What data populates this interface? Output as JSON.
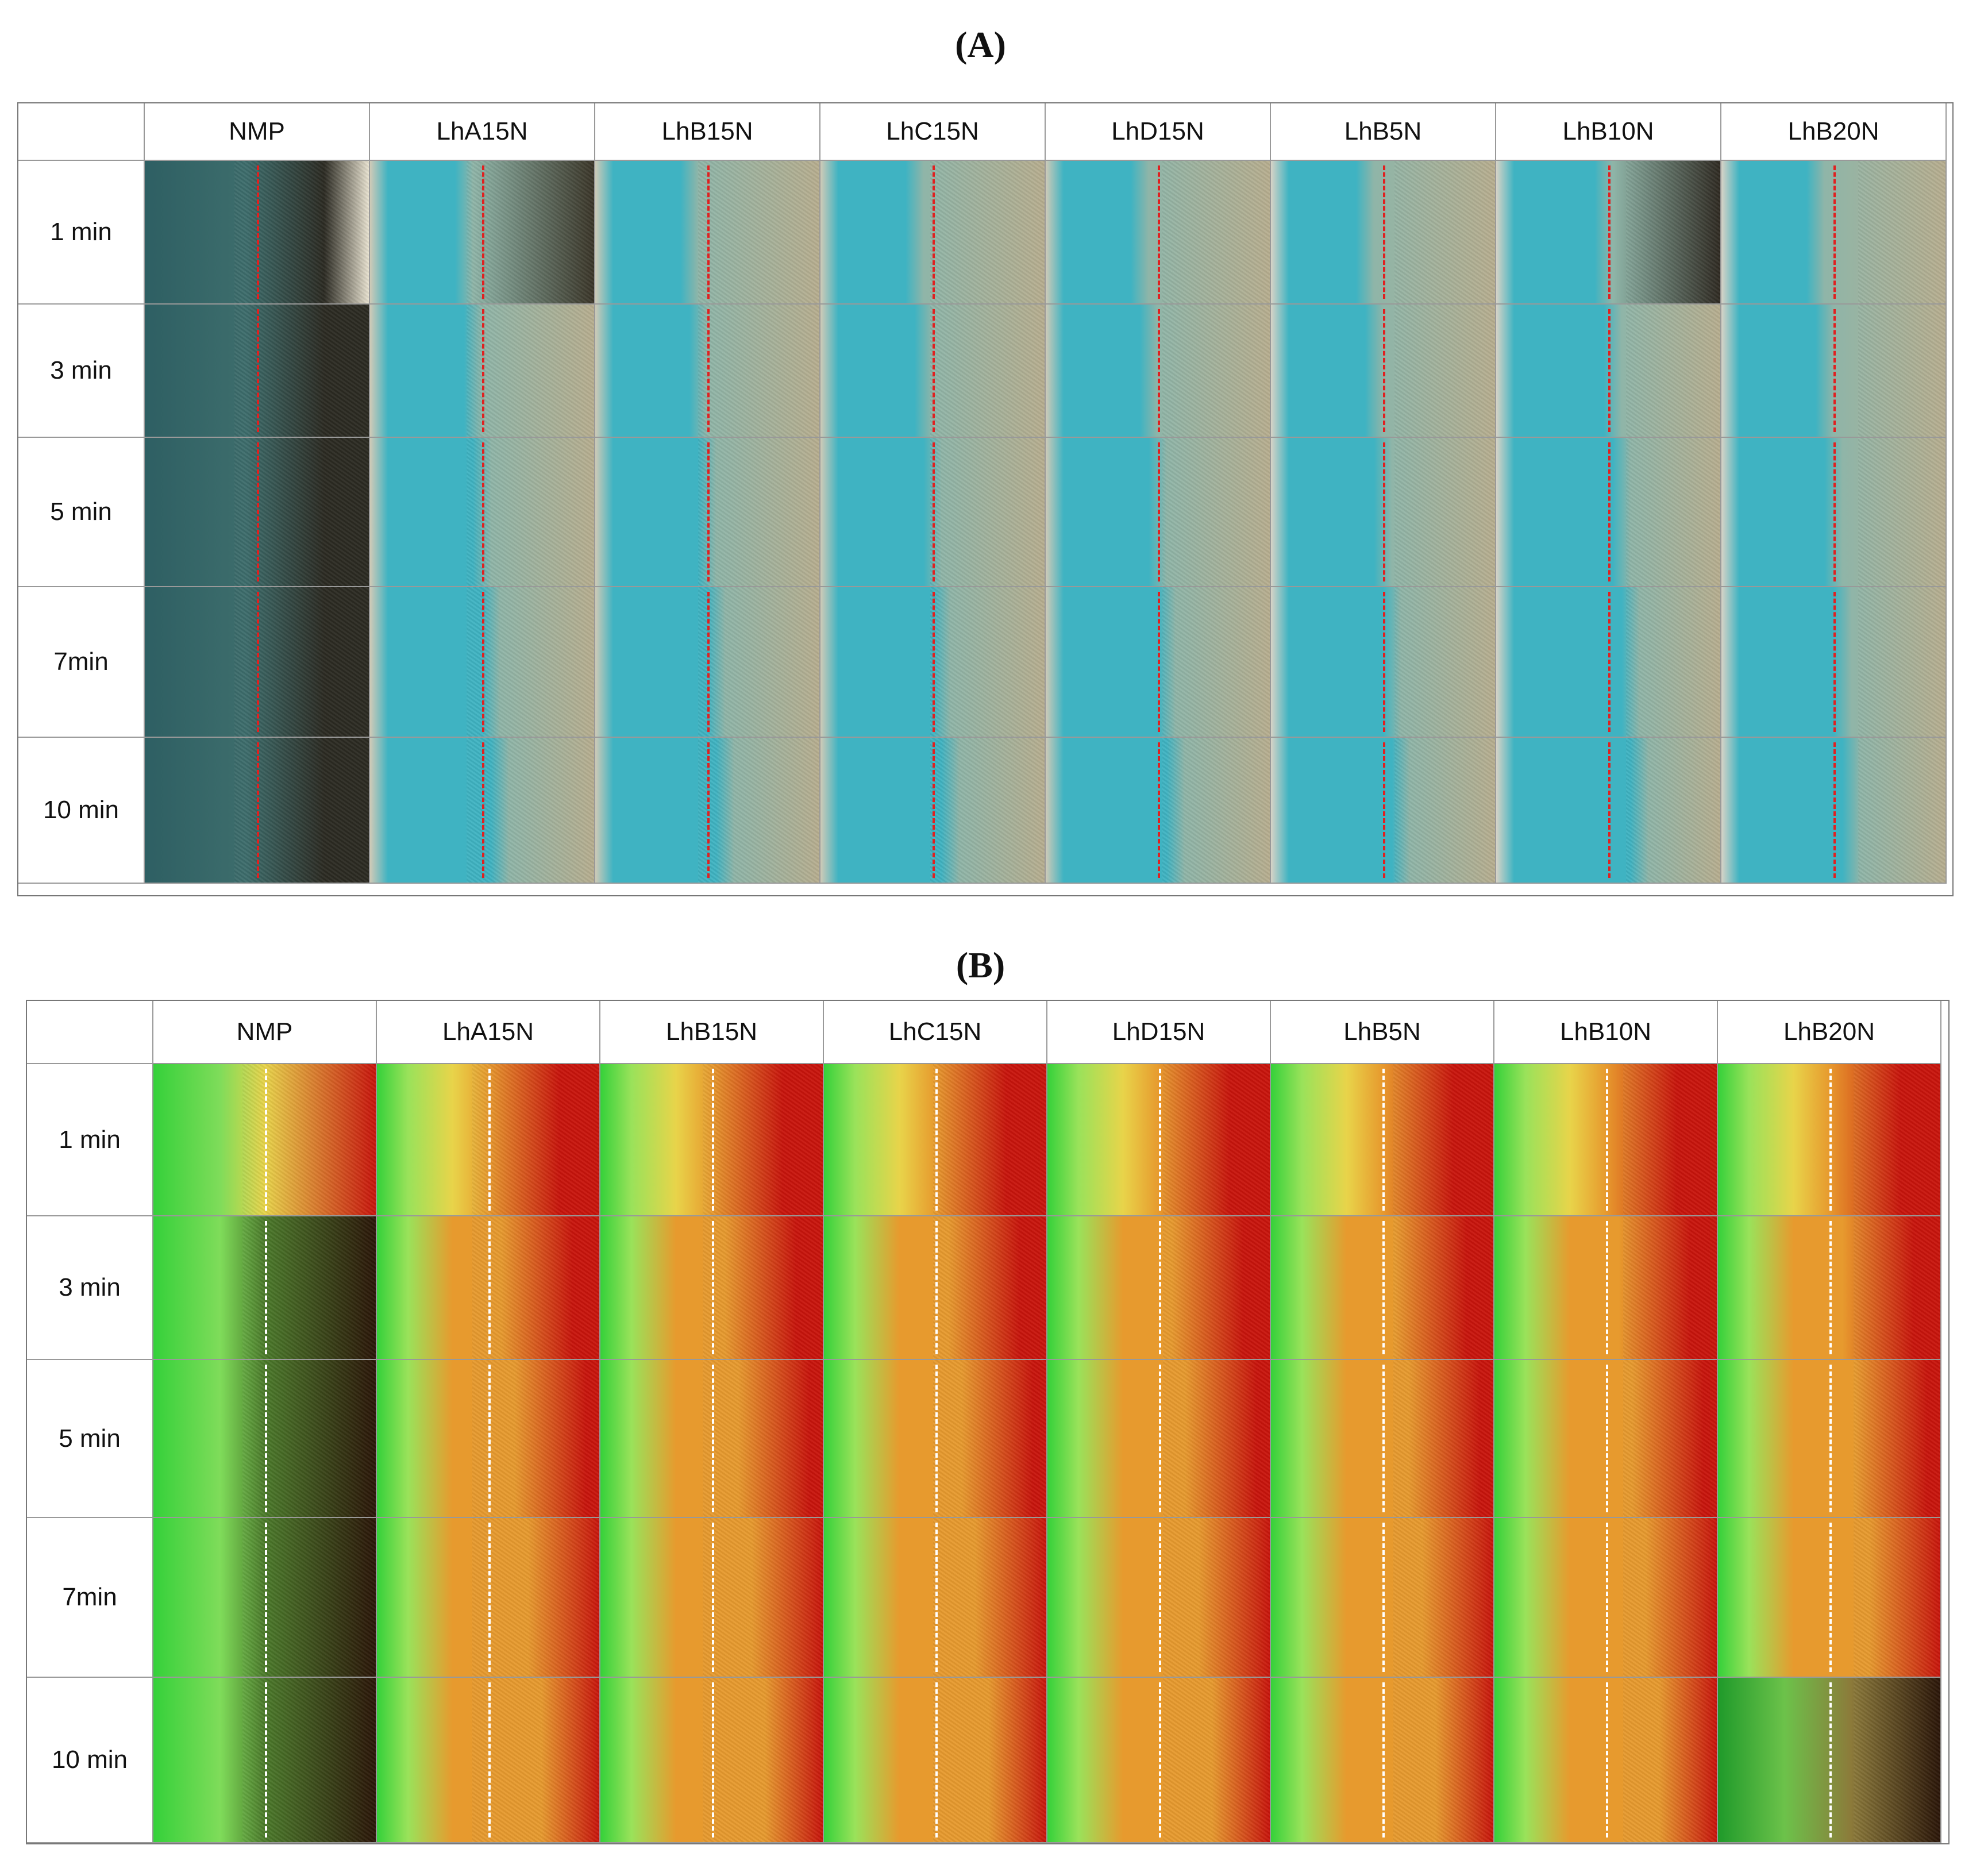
{
  "panel_a": {
    "title": "(A)",
    "corner": "",
    "columns": [
      "NMP",
      "LhA15N",
      "LhB15N",
      "LhC15N",
      "LhD15N",
      "LhB5N",
      "LhB10N",
      "LhB20N"
    ],
    "rows": [
      "1 min",
      "3 min",
      "5 min",
      "7min",
      "10 min"
    ],
    "guide_line_color": "#e02020"
  },
  "panel_b": {
    "title": "(B)",
    "corner": "",
    "columns": [
      "NMP",
      "LhA15N",
      "LhB15N",
      "LhC15N",
      "LhD15N",
      "LhB5N",
      "LhB10N",
      "LhB20N"
    ],
    "rows": [
      "1 min",
      "3 min",
      "5 min",
      "7min",
      "10 min"
    ],
    "guide_line_color": "#ffffff"
  },
  "colors": {
    "a_teal": "#3fb3c2",
    "a_dark_teal": "#2e5f63",
    "a_tan": "#b7ae8f",
    "a_dark": "#2b2a22",
    "b_green": "#35d13a",
    "b_yellow": "#e8d44a",
    "b_orange": "#e79a2e",
    "b_red": "#c8140c",
    "b_dark": "#2a1508"
  }
}
